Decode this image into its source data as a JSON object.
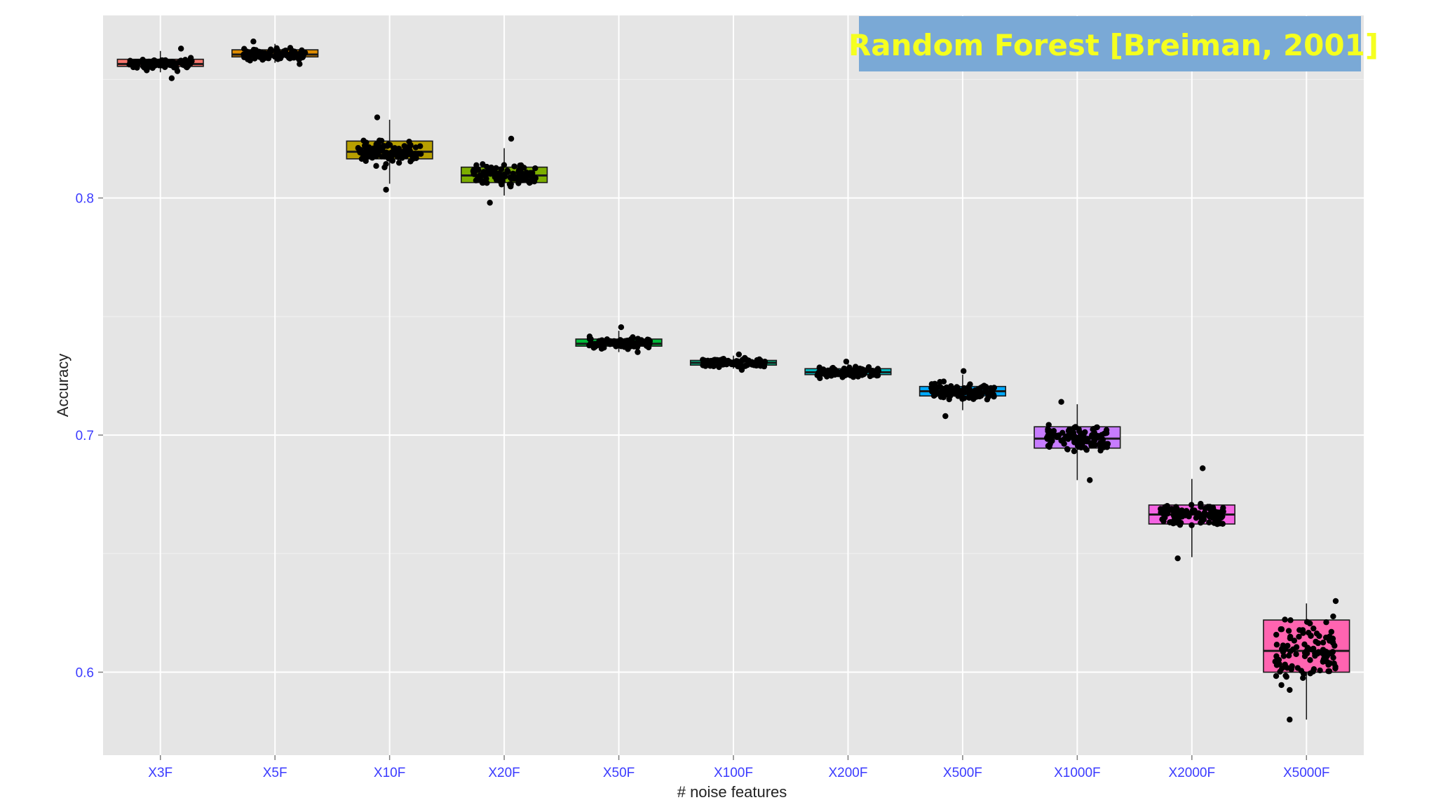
{
  "banner": {
    "text": "Random Forest [Breiman, 2001]",
    "bg_color": "#7aa9d6",
    "text_color": "#f5ff1f"
  },
  "chart_data": {
    "type": "boxplot",
    "title": "",
    "xlabel": "# noise features",
    "ylabel": "Accuracy",
    "ylim": [
      0.565,
      0.877
    ],
    "yticks": [
      0.6,
      0.7,
      0.8
    ],
    "ytick_labels": [
      "0.6",
      "0.7",
      "0.8"
    ],
    "grid": true,
    "panel_color": "#e5e5e5",
    "categories": [
      "X3F",
      "X5F",
      "X10F",
      "X20F",
      "X50F",
      "X100F",
      "X200F",
      "X500F",
      "X1000F",
      "X2000F",
      "X5000F"
    ],
    "boxes": [
      {
        "category": "X3F",
        "color": "#f8766d",
        "q1": 0.8555,
        "median": 0.8565,
        "q3": 0.8585,
        "whisker_low": 0.853,
        "whisker_high": 0.862,
        "pt_min": 0.8505,
        "pt_max": 0.863
      },
      {
        "category": "X5F",
        "color": "#de8c00",
        "q1": 0.8595,
        "median": 0.8605,
        "q3": 0.8625,
        "whisker_low": 0.857,
        "whisker_high": 0.865,
        "pt_min": 0.8565,
        "pt_max": 0.866
      },
      {
        "category": "X10F",
        "color": "#b79f00",
        "q1": 0.8165,
        "median": 0.8195,
        "q3": 0.824,
        "whisker_low": 0.806,
        "whisker_high": 0.833,
        "pt_min": 0.8035,
        "pt_max": 0.834
      },
      {
        "category": "X20F",
        "color": "#7cae00",
        "q1": 0.8065,
        "median": 0.8095,
        "q3": 0.813,
        "whisker_low": 0.801,
        "whisker_high": 0.821,
        "pt_min": 0.798,
        "pt_max": 0.825
      },
      {
        "category": "X50F",
        "color": "#00ba38",
        "q1": 0.7375,
        "median": 0.7385,
        "q3": 0.7405,
        "whisker_low": 0.735,
        "whisker_high": 0.744,
        "pt_min": 0.735,
        "pt_max": 0.7455
      },
      {
        "category": "X100F",
        "color": "#00c08b",
        "q1": 0.7295,
        "median": 0.7305,
        "q3": 0.7315,
        "whisker_low": 0.728,
        "whisker_high": 0.7335,
        "pt_min": 0.7275,
        "pt_max": 0.734
      },
      {
        "category": "X200F",
        "color": "#00bfc4",
        "q1": 0.7255,
        "median": 0.7265,
        "q3": 0.728,
        "whisker_low": 0.7245,
        "whisker_high": 0.7305,
        "pt_min": 0.724,
        "pt_max": 0.731
      },
      {
        "category": "X500F",
        "color": "#00a9ff",
        "q1": 0.7165,
        "median": 0.7185,
        "q3": 0.7205,
        "whisker_low": 0.7105,
        "whisker_high": 0.7255,
        "pt_min": 0.708,
        "pt_max": 0.727
      },
      {
        "category": "X1000F",
        "color": "#c77cff",
        "q1": 0.6945,
        "median": 0.6985,
        "q3": 0.7035,
        "whisker_low": 0.681,
        "whisker_high": 0.713,
        "pt_min": 0.681,
        "pt_max": 0.714
      },
      {
        "category": "X2000F",
        "color": "#f564e3",
        "q1": 0.6625,
        "median": 0.6665,
        "q3": 0.6705,
        "whisker_low": 0.6485,
        "whisker_high": 0.6815,
        "pt_min": 0.648,
        "pt_max": 0.686
      },
      {
        "category": "X5000F",
        "color": "#ff64b0",
        "q1": 0.6,
        "median": 0.609,
        "q3": 0.622,
        "whisker_low": 0.58,
        "whisker_high": 0.629,
        "pt_min": 0.58,
        "pt_max": 0.63
      }
    ]
  }
}
